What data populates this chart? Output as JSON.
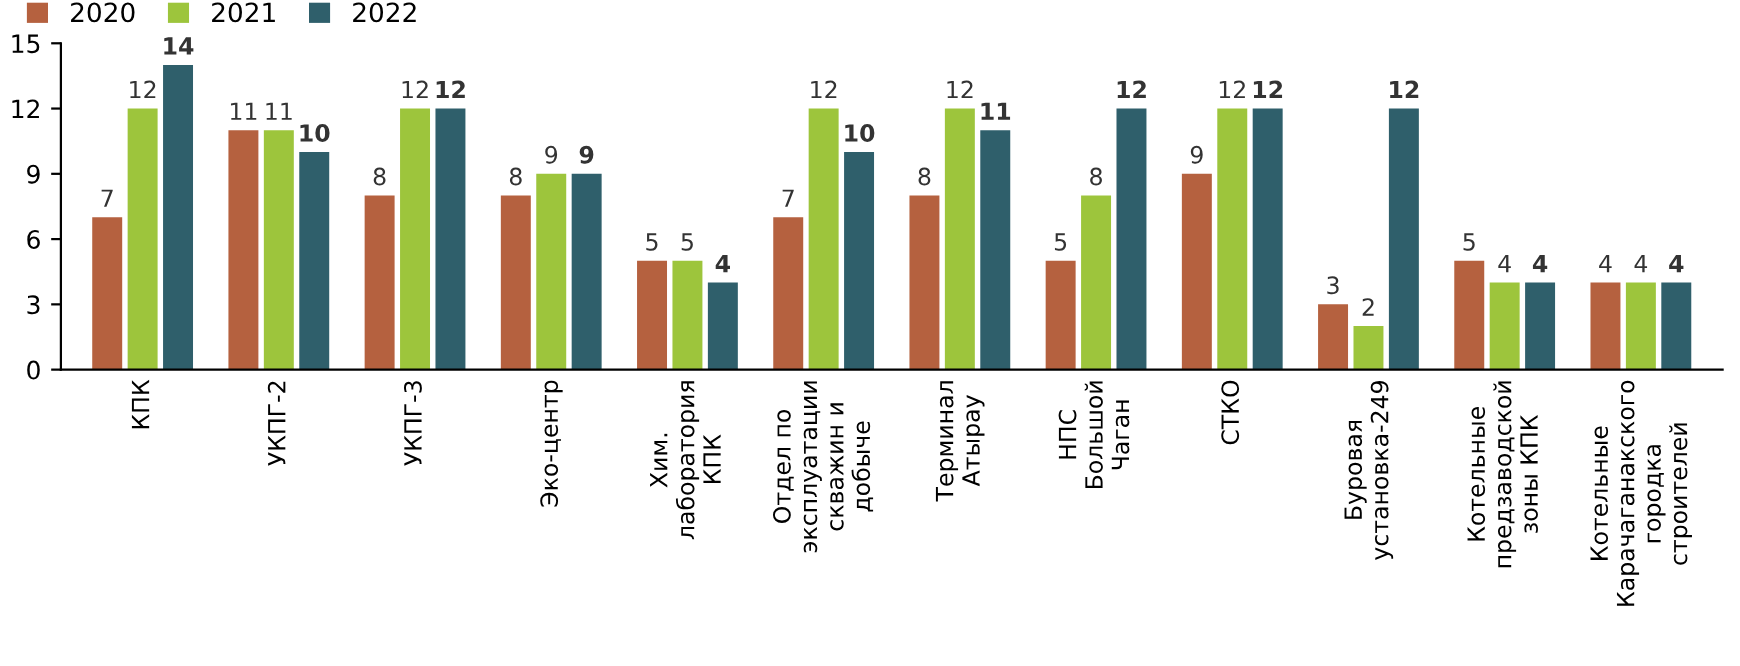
{
  "chart_data": {
    "type": "bar",
    "categories": [
      "КПК",
      "УКПГ-2",
      "УКПГ-3",
      "Эко-центр",
      "Хим.\nлаборатория\nКПК",
      "Отдел по\nэксплуатации\nскважин и\nдобыче",
      "Терминал\nАтырау",
      "НПС\nБольшой\nЧаган",
      "СТКО",
      "Буровая\nустановка-249",
      "Котельные\nпредзаводской\nзоны КПК",
      "Котельные\nКарачаганакского\nгородка\nстроителей"
    ],
    "series": [
      {
        "name": "2020",
        "color": "#b5613f",
        "values": [
          7,
          11,
          8,
          8,
          5,
          7,
          8,
          5,
          9,
          3,
          5,
          4
        ]
      },
      {
        "name": "2021",
        "color": "#9dc53c",
        "values": [
          12,
          11,
          12,
          9,
          5,
          12,
          12,
          8,
          12,
          2,
          4,
          4
        ]
      },
      {
        "name": "2022",
        "color": "#2f5f6b",
        "values": [
          14,
          10,
          12,
          9,
          4,
          10,
          11,
          12,
          12,
          12,
          4,
          4
        ]
      }
    ],
    "ylim": [
      0,
      15
    ],
    "yticks": [
      0,
      3,
      6,
      9,
      12,
      15
    ],
    "data_labels": true,
    "legend": "top left",
    "grid": false
  }
}
